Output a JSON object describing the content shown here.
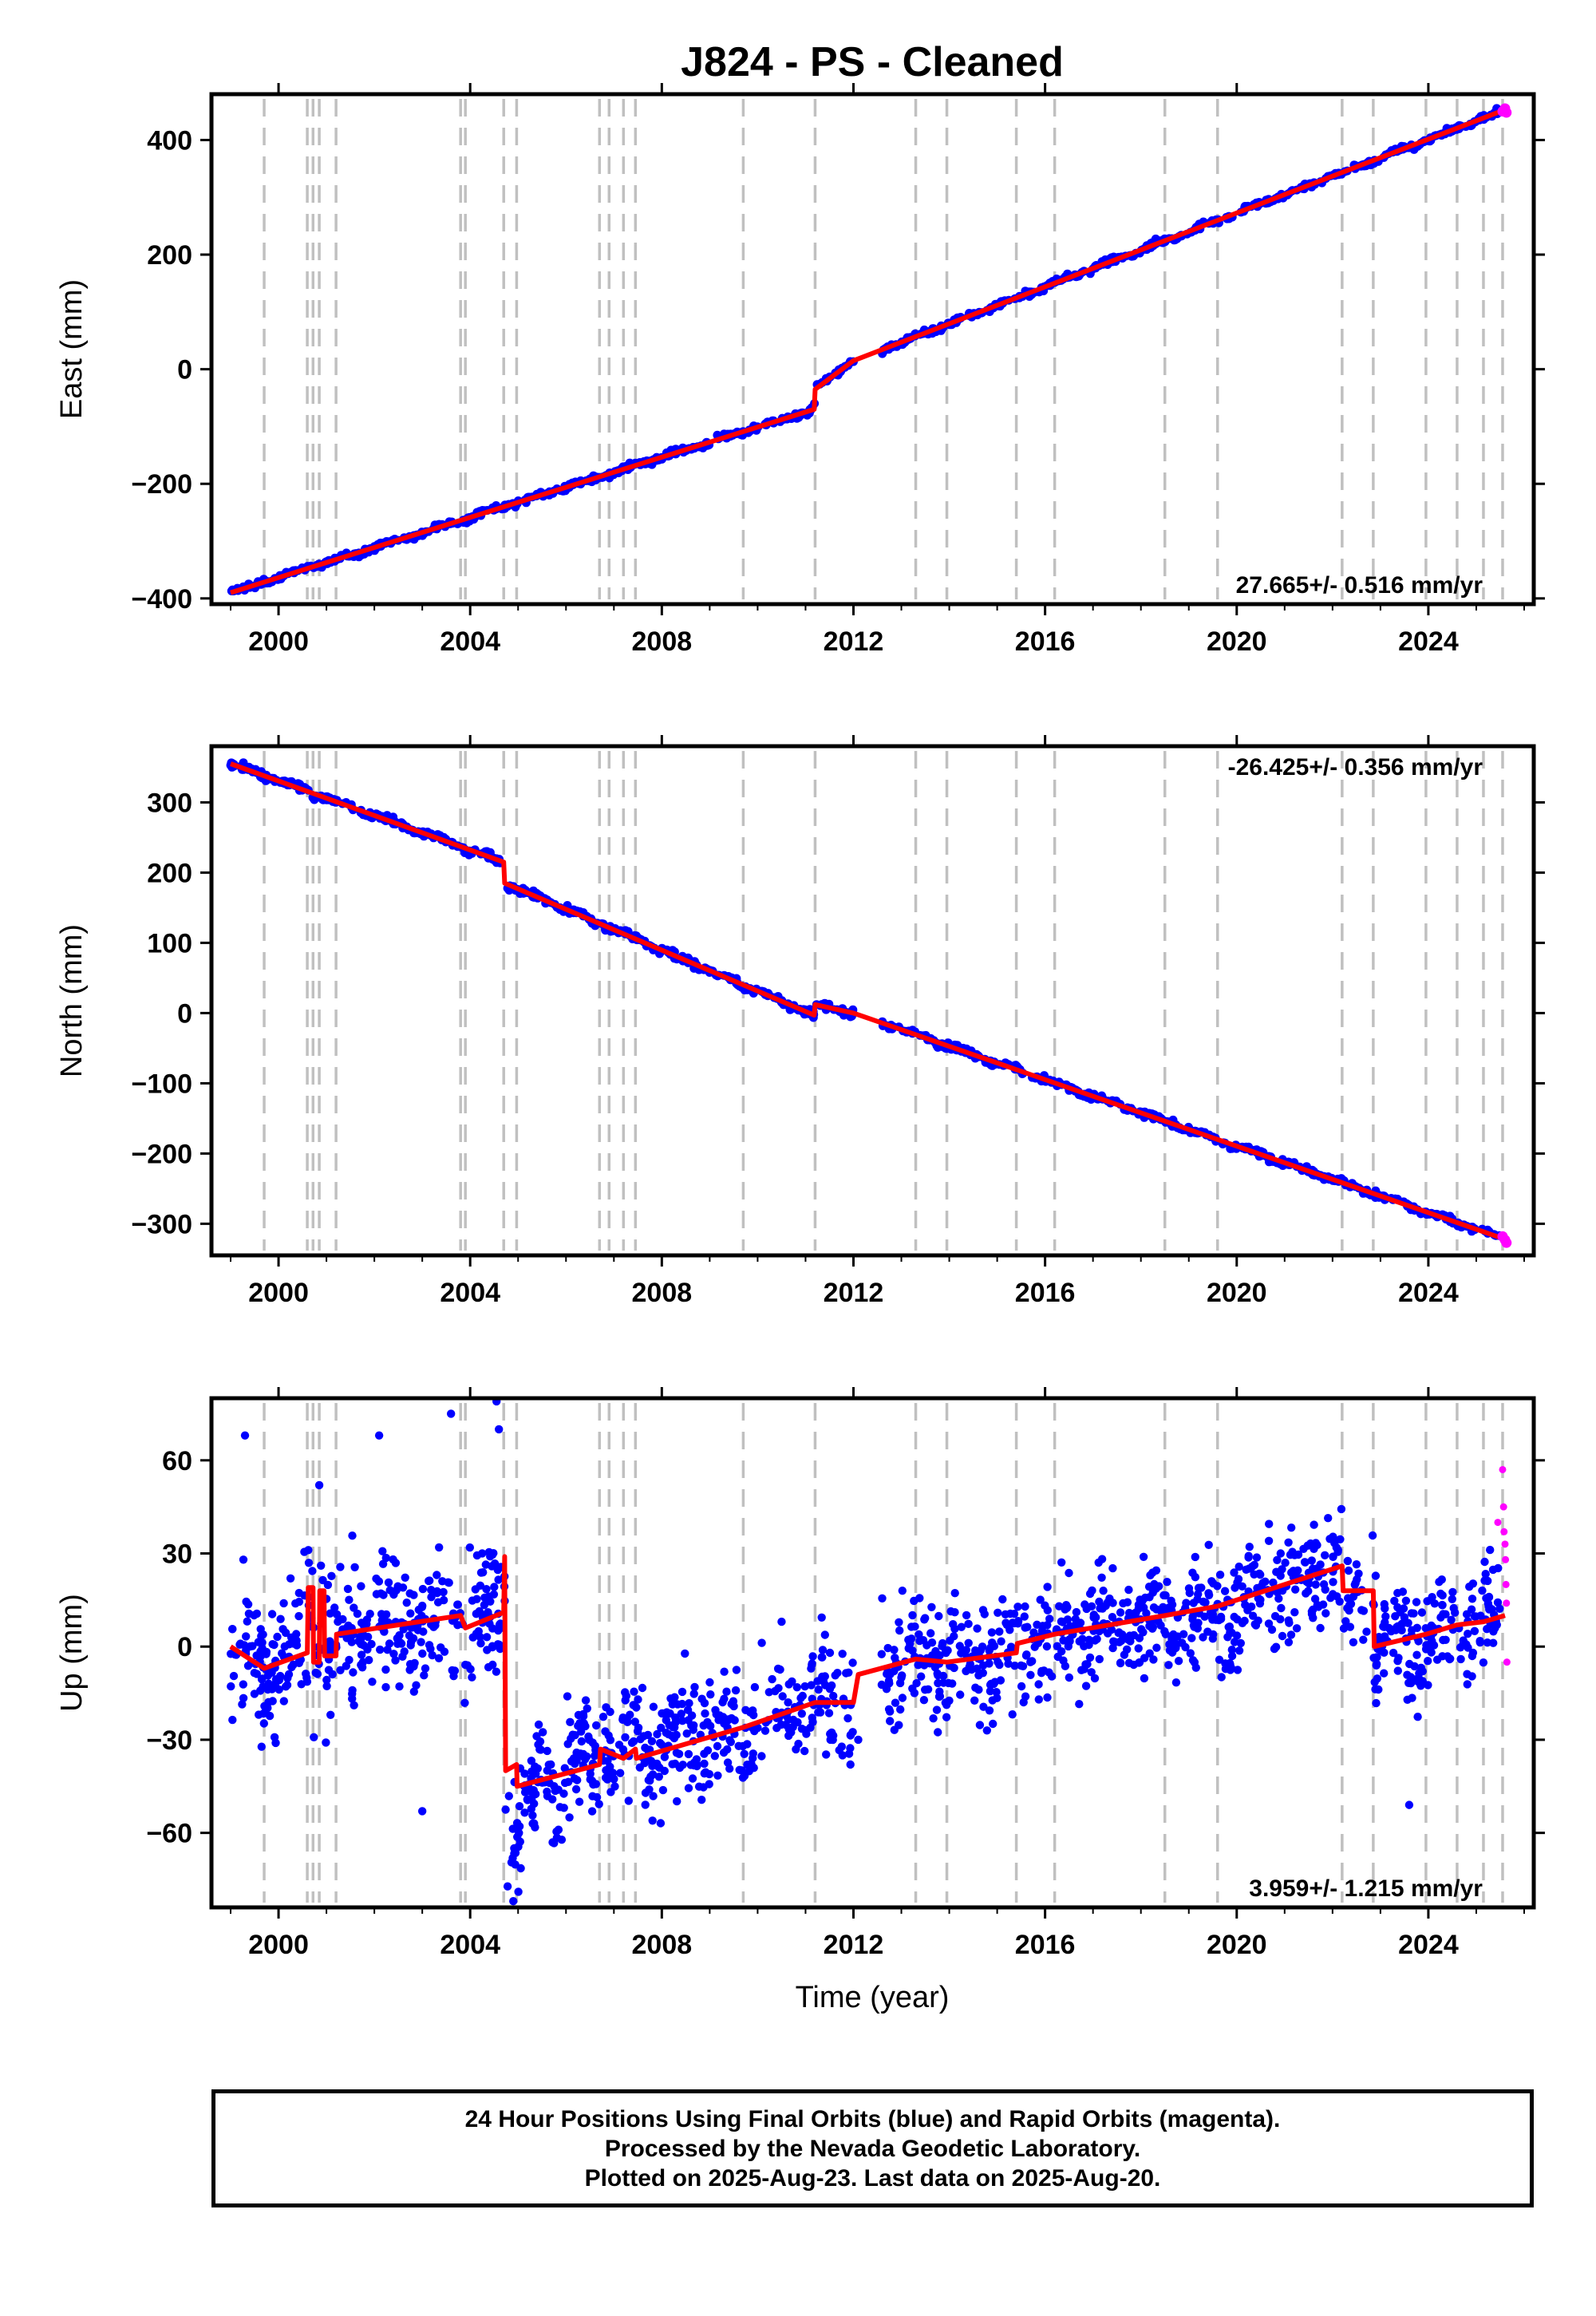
{
  "figure_title": "J824  - PS - Cleaned",
  "xlabel": "Time (year)",
  "colors": {
    "final_orbits": "#0000ff",
    "rapid_orbits": "#ff00ff",
    "model": "#ff0000",
    "steps": "#c0c0c0",
    "axes": "#000000"
  },
  "chart_data": [
    {
      "type": "scatter",
      "component": "East",
      "ylabel": "East (mm)",
      "xlim": [
        1998.6,
        2026.2
      ],
      "ylim": [
        -410,
        480
      ],
      "yticks": [
        -400,
        -200,
        0,
        200,
        400
      ],
      "xticks": [
        2000,
        2004,
        2008,
        2012,
        2016,
        2020,
        2024
      ],
      "rate_label": "27.665+/- 0.516 mm/yr",
      "rate_position": "bottom-right",
      "steps": [
        1999.7,
        2000.6,
        2000.72,
        2000.85,
        2001.2,
        2003.8,
        2003.9,
        2004.7,
        2004.97,
        2006.7,
        2006.9,
        2007.2,
        2007.45,
        2009.7,
        2011.2,
        2013.3,
        2013.95,
        2015.4,
        2016.2,
        2018.5,
        2019.6,
        2022.2,
        2022.85,
        2023.95,
        2024.6,
        2025.15,
        2025.55
      ],
      "model": [
        [
          1999.0,
          -390
        ],
        [
          2011.18,
          -70
        ],
        [
          2011.2,
          -35
        ],
        [
          2012.0,
          15
        ],
        [
          2025.6,
          453
        ]
      ],
      "rapid": [
        [
          2025.55,
          450
        ],
        [
          2025.6,
          455
        ],
        [
          2025.63,
          448
        ]
      ]
    },
    {
      "type": "scatter",
      "component": "North",
      "ylabel": "North (mm)",
      "xlim": [
        1998.6,
        2026.2
      ],
      "ylim": [
        -345,
        380
      ],
      "yticks": [
        -300,
        -200,
        -100,
        0,
        100,
        200,
        300
      ],
      "xticks": [
        2000,
        2004,
        2008,
        2012,
        2016,
        2020,
        2024
      ],
      "rate_label": "-26.425+/- 0.356 mm/yr",
      "rate_position": "top-right",
      "steps": [
        1999.7,
        2000.6,
        2000.72,
        2000.85,
        2001.2,
        2003.8,
        2003.9,
        2004.7,
        2004.97,
        2006.7,
        2006.9,
        2007.2,
        2007.45,
        2009.7,
        2011.2,
        2013.3,
        2013.95,
        2015.4,
        2016.2,
        2018.5,
        2019.6,
        2022.2,
        2022.85,
        2023.95,
        2024.6,
        2025.15,
        2025.55
      ],
      "model": [
        [
          1999.0,
          355
        ],
        [
          2004.7,
          215
        ],
        [
          2004.72,
          185
        ],
        [
          2011.18,
          -3
        ],
        [
          2011.2,
          12
        ],
        [
          2012.0,
          0
        ],
        [
          2025.6,
          -322
        ]
      ],
      "rapid": [
        [
          2025.55,
          -318
        ],
        [
          2025.6,
          -323
        ],
        [
          2025.63,
          -327
        ]
      ]
    },
    {
      "type": "scatter",
      "component": "Up",
      "ylabel": "Up (mm)",
      "xlim": [
        1998.6,
        2026.2
      ],
      "ylim": [
        -84,
        80
      ],
      "yticks": [
        -60,
        -30,
        0,
        30,
        60
      ],
      "xticks": [
        2000,
        2004,
        2008,
        2012,
        2016,
        2020,
        2024
      ],
      "rate_label": "3.959+/- 1.215 mm/yr",
      "rate_position": "bottom-right",
      "steps": [
        1999.7,
        2000.6,
        2000.72,
        2000.85,
        2001.2,
        2003.8,
        2003.9,
        2004.7,
        2004.97,
        2006.7,
        2006.9,
        2007.2,
        2007.45,
        2009.7,
        2011.2,
        2013.3,
        2013.95,
        2015.4,
        2016.2,
        2018.5,
        2019.6,
        2022.2,
        2022.85,
        2023.95,
        2024.6,
        2025.15,
        2025.55
      ],
      "model": [
        [
          1999.0,
          0
        ],
        [
          1999.7,
          -7
        ],
        [
          2000.6,
          -2
        ],
        [
          2000.62,
          19
        ],
        [
          2000.72,
          19
        ],
        [
          2000.73,
          -5
        ],
        [
          2000.85,
          -5
        ],
        [
          2000.86,
          18
        ],
        [
          2000.95,
          18
        ],
        [
          2000.96,
          -3
        ],
        [
          2001.2,
          -3
        ],
        [
          2001.21,
          4
        ],
        [
          2003.8,
          10
        ],
        [
          2003.9,
          6
        ],
        [
          2004.7,
          11
        ],
        [
          2004.72,
          29
        ],
        [
          2004.74,
          -40
        ],
        [
          2004.97,
          -38
        ],
        [
          2004.98,
          -45
        ],
        [
          2006.7,
          -38
        ],
        [
          2006.72,
          -33
        ],
        [
          2007.2,
          -36
        ],
        [
          2007.45,
          -33
        ],
        [
          2007.47,
          -36
        ],
        [
          2009.7,
          -26
        ],
        [
          2011.2,
          -18
        ],
        [
          2012.0,
          -18
        ],
        [
          2012.1,
          -9
        ],
        [
          2013.3,
          -4
        ],
        [
          2013.95,
          -5
        ],
        [
          2015.4,
          -2
        ],
        [
          2015.42,
          1
        ],
        [
          2016.2,
          4
        ],
        [
          2018.5,
          10
        ],
        [
          2019.6,
          13
        ],
        [
          2022.2,
          26
        ],
        [
          2022.22,
          18
        ],
        [
          2022.85,
          18
        ],
        [
          2022.87,
          0
        ],
        [
          2023.95,
          4
        ],
        [
          2024.6,
          7
        ],
        [
          2025.15,
          8
        ],
        [
          2025.6,
          10
        ]
      ],
      "rapid": [
        [
          2025.55,
          57
        ],
        [
          2025.57,
          45
        ],
        [
          2025.58,
          37
        ],
        [
          2025.6,
          33
        ],
        [
          2025.61,
          28
        ],
        [
          2025.62,
          20
        ],
        [
          2025.63,
          14
        ],
        [
          2025.64,
          -5
        ],
        [
          2025.45,
          40
        ]
      ],
      "outliers": [
        [
          1999.3,
          68
        ],
        [
          2000.85,
          52
        ],
        [
          2002.1,
          68
        ],
        [
          2003.6,
          75
        ],
        [
          2004.55,
          79
        ],
        [
          2004.6,
          70
        ],
        [
          2003.0,
          -53
        ],
        [
          2010.5,
          8
        ],
        [
          2012.1,
          -30
        ],
        [
          2023.6,
          -51
        ],
        [
          2004.9,
          -82
        ]
      ]
    }
  ],
  "footnote": [
    "24 Hour Positions Using Final Orbits (blue) and Rapid Orbits (magenta).",
    "Processed by the Nevada Geodetic Laboratory.",
    "Plotted on 2025-Aug-23. Last data on 2025-Aug-20."
  ]
}
